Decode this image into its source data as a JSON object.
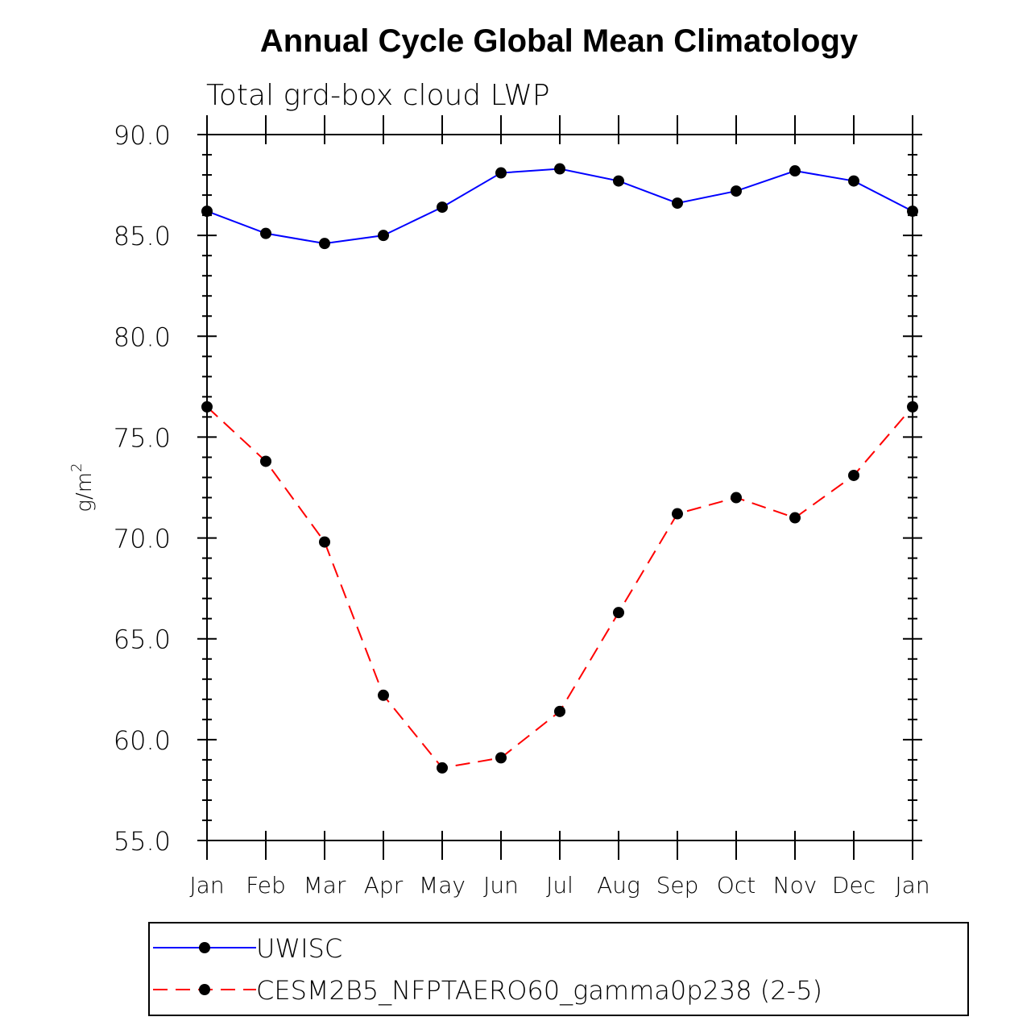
{
  "chart_data": {
    "type": "line",
    "title": "Annual Cycle Global Mean Climatology",
    "subtitle": "Total grd-box cloud LWP",
    "xlabel": "",
    "ylabel": "g/m",
    "ylabel_superscript": "2",
    "ylim": [
      55,
      90
    ],
    "yticks": [
      "55.0",
      "60.0",
      "65.0",
      "70.0",
      "75.0",
      "80.0",
      "85.0",
      "90.0"
    ],
    "categories": [
      "Jan",
      "Feb",
      "Mar",
      "Apr",
      "May",
      "Jun",
      "Jul",
      "Aug",
      "Sep",
      "Oct",
      "Nov",
      "Dec",
      "Jan"
    ],
    "series": [
      {
        "name": "UWISC",
        "color": "#0000ff",
        "dash": "solid",
        "values": [
          86.2,
          85.1,
          84.6,
          85.0,
          86.4,
          88.1,
          88.3,
          87.7,
          86.6,
          87.2,
          88.2,
          87.7,
          86.2
        ]
      },
      {
        "name": "CESM2B5_NFPTAERO60_gamma0p238 (2-5)",
        "color": "#ff0000",
        "dash": "dashed",
        "values": [
          76.5,
          73.8,
          69.8,
          62.2,
          58.6,
          59.1,
          61.4,
          66.3,
          71.2,
          72.0,
          71.0,
          73.1,
          76.5
        ]
      }
    ],
    "legend": "bottom"
  }
}
